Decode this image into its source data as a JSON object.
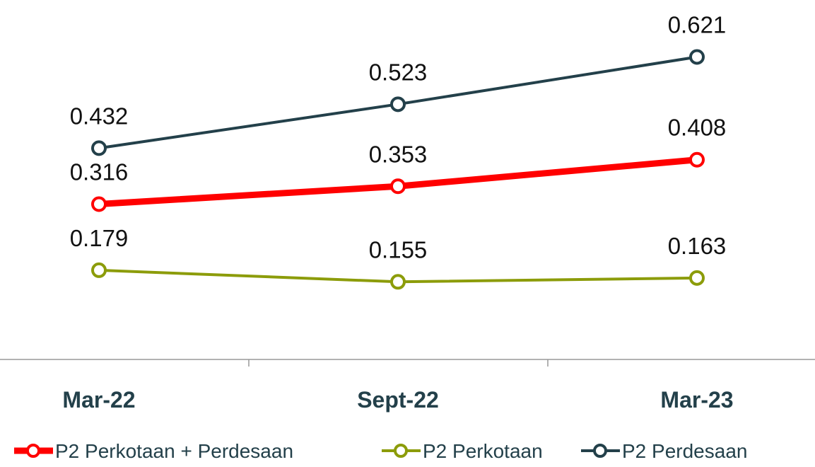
{
  "chart_data": {
    "type": "line",
    "categories": [
      "Mar-22",
      "Sept-22",
      "Mar-23"
    ],
    "series": [
      {
        "name": "P2 Perkotaan + Perdesaan",
        "color": "#ff0000",
        "values": [
          0.316,
          0.353,
          0.408
        ]
      },
      {
        "name": "P2 Perkotaan",
        "color": "#8c9c0a",
        "values": [
          0.179,
          0.155,
          0.163
        ]
      },
      {
        "name": "P2 Perdesaan",
        "color": "#23404a",
        "values": [
          0.432,
          0.523,
          0.621
        ]
      }
    ],
    "ylim": [
      0,
      0.7
    ],
    "legend": "bottom"
  }
}
